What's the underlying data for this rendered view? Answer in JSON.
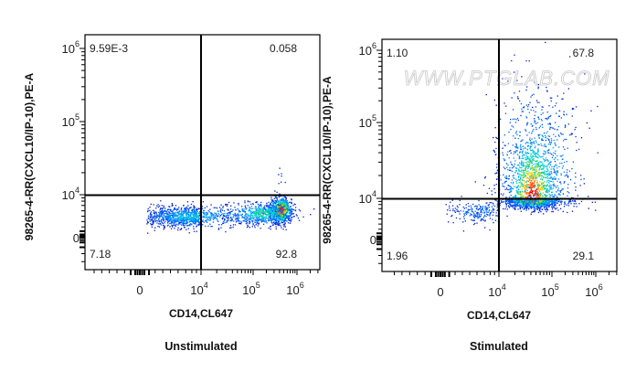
{
  "chart_data": [
    {
      "type": "scatter",
      "subtype": "flow-cytometry-density-dot-plot",
      "title": "Unstimulated",
      "xlabel": "CD14,CL647",
      "ylabel": "98265-4-RR(CXCL10/IP-10),PE-A",
      "x_scale": "biexponential",
      "y_scale": "biexponential",
      "x_ticks": [
        {
          "base": "0",
          "exp": ""
        },
        {
          "base": "10",
          "exp": "4"
        },
        {
          "base": "10",
          "exp": "5"
        },
        {
          "base": "10",
          "exp": "6"
        }
      ],
      "y_ticks": [
        {
          "base": "0",
          "exp": ""
        },
        {
          "base": "10",
          "exp": "4"
        },
        {
          "base": "10",
          "exp": "5"
        },
        {
          "base": "10",
          "exp": "6"
        }
      ],
      "quadrant_gate": {
        "x": 10000,
        "y": 9000
      },
      "quadrants": {
        "upper_left": "9.59E-3",
        "upper_right": "0.058",
        "lower_left": "7.18",
        "lower_right": "92.8"
      }
    },
    {
      "type": "scatter",
      "subtype": "flow-cytometry-density-dot-plot",
      "title": "Stimulated",
      "xlabel": "CD14,CL647",
      "ylabel": "98265-4-RR(CXCL10/IP-10),PE-A",
      "x_scale": "biexponential",
      "y_scale": "biexponential",
      "x_ticks": [
        {
          "base": "0",
          "exp": ""
        },
        {
          "base": "10",
          "exp": "4"
        },
        {
          "base": "10",
          "exp": "5"
        },
        {
          "base": "10",
          "exp": "6"
        }
      ],
      "y_ticks": [
        {
          "base": "0",
          "exp": ""
        },
        {
          "base": "10",
          "exp": "4"
        },
        {
          "base": "10",
          "exp": "5"
        },
        {
          "base": "10",
          "exp": "6"
        }
      ],
      "quadrant_gate": {
        "x": 10000,
        "y": 9000
      },
      "quadrants": {
        "upper_left": "1.10",
        "upper_right": "67.8",
        "lower_left": "1.96",
        "lower_right": "29.1"
      },
      "watermark": "WWW.PTGLAB.COM"
    }
  ],
  "colors": {
    "density_low": "#0000c8",
    "density_mid": "#00c060",
    "density_high": "#ff2000",
    "gate_line": "#000000"
  }
}
